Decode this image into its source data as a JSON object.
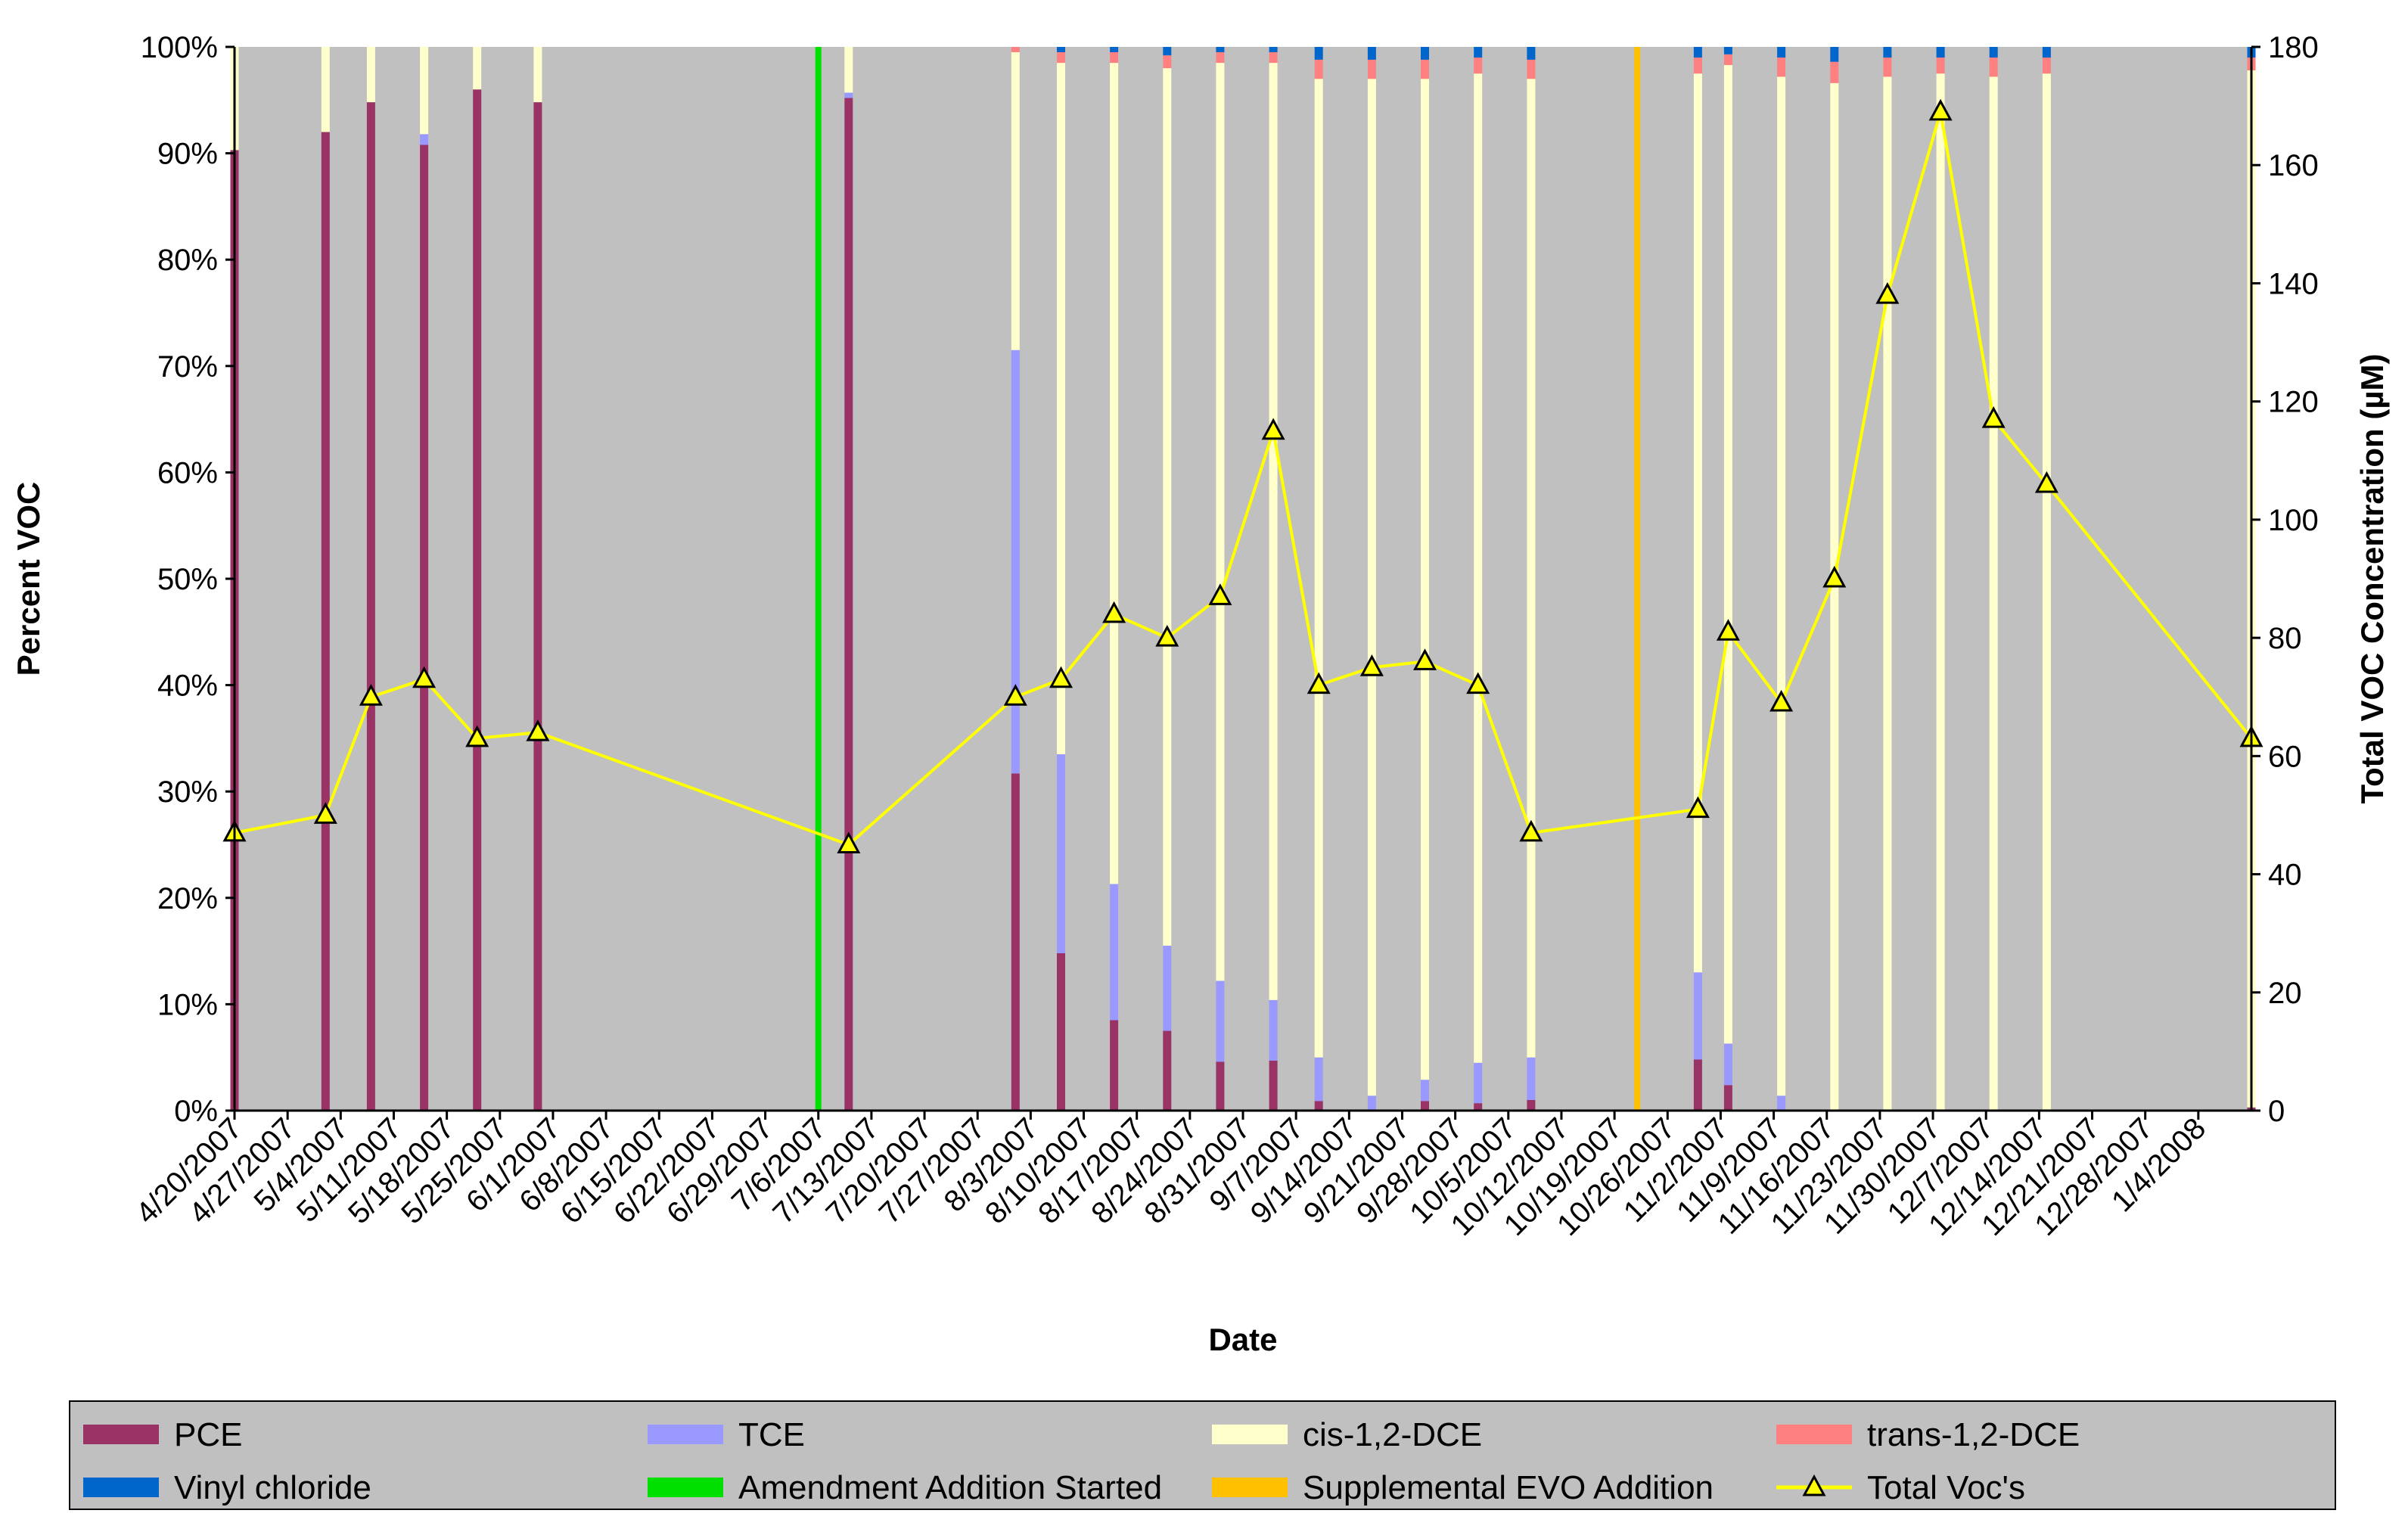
{
  "chart_data": {
    "type": "bar",
    "title": "",
    "xlabel": "Date",
    "ylabel": "Percent VOC",
    "y2label": "Total VOC Concentration (µM)",
    "ylim": [
      0,
      100
    ],
    "y2lim": [
      0,
      180
    ],
    "grid": false,
    "y_ticks": [
      "0%",
      "10%",
      "20%",
      "30%",
      "40%",
      "50%",
      "60%",
      "70%",
      "80%",
      "90%",
      "100%"
    ],
    "y2_ticks": [
      "0",
      "20",
      "40",
      "60",
      "80",
      "100",
      "120",
      "140",
      "160",
      "180"
    ],
    "x_ticks": [
      "4/20/2007",
      "4/27/2007",
      "5/4/2007",
      "5/11/2007",
      "5/18/2007",
      "5/25/2007",
      "6/1/2007",
      "6/8/2007",
      "6/15/2007",
      "6/22/2007",
      "6/29/2007",
      "7/6/2007",
      "7/13/2007",
      "7/20/2007",
      "7/27/2007",
      "8/3/2007",
      "8/10/2007",
      "8/17/2007",
      "8/24/2007",
      "8/31/2007",
      "9/7/2007",
      "9/14/2007",
      "9/21/2007",
      "9/28/2007",
      "10/5/2007",
      "10/12/2007",
      "10/19/2007",
      "10/26/2007",
      "11/2/2007",
      "11/9/2007",
      "11/16/2007",
      "11/23/2007",
      "11/30/2007",
      "12/7/2007",
      "12/14/2007",
      "12/21/2007",
      "12/28/2007",
      "1/4/2008"
    ],
    "x_start_date": "4/20/2007",
    "x_end_date": "1/11/2008",
    "samples": [
      {
        "date": "4/20/2007",
        "pce": 90.3,
        "tce": 0.0,
        "cis": 9.7,
        "trans": 0.0,
        "vc": 0.0,
        "total": 47
      },
      {
        "date": "5/2/2007",
        "pce": 92.0,
        "tce": 0.0,
        "cis": 8.0,
        "trans": 0.0,
        "vc": 0.0,
        "total": 50
      },
      {
        "date": "5/8/2007",
        "pce": 94.8,
        "tce": 0.0,
        "cis": 5.2,
        "trans": 0.0,
        "vc": 0.0,
        "total": 70
      },
      {
        "date": "5/15/2007",
        "pce": 90.8,
        "tce": 1.0,
        "cis": 8.2,
        "trans": 0.0,
        "vc": 0.0,
        "total": 73
      },
      {
        "date": "5/22/2007",
        "pce": 96.0,
        "tce": 0.0,
        "cis": 4.0,
        "trans": 0.0,
        "vc": 0.0,
        "total": 63
      },
      {
        "date": "5/30/2007",
        "pce": 94.8,
        "tce": 0.0,
        "cis": 5.2,
        "trans": 0.0,
        "vc": 0.0,
        "total": 64
      },
      {
        "date": "7/10/2007",
        "pce": 95.2,
        "tce": 0.5,
        "cis": 4.3,
        "trans": 0.0,
        "vc": 0.0,
        "total": 45
      },
      {
        "date": "8/1/2007",
        "pce": 31.7,
        "tce": 39.8,
        "cis": 28.0,
        "trans": 0.5,
        "vc": 0.0,
        "total": 70
      },
      {
        "date": "8/7/2007",
        "pce": 14.8,
        "tce": 18.7,
        "cis": 65.0,
        "trans": 1.0,
        "vc": 0.5,
        "total": 73
      },
      {
        "date": "8/14/2007",
        "pce": 8.5,
        "tce": 12.8,
        "cis": 77.2,
        "trans": 1.0,
        "vc": 0.5,
        "total": 84
      },
      {
        "date": "8/21/2007",
        "pce": 7.5,
        "tce": 8.0,
        "cis": 82.5,
        "trans": 1.2,
        "vc": 0.8,
        "total": 80
      },
      {
        "date": "8/28/2007",
        "pce": 4.6,
        "tce": 7.6,
        "cis": 86.3,
        "trans": 1.0,
        "vc": 0.5,
        "total": 87
      },
      {
        "date": "9/4/2007",
        "pce": 4.7,
        "tce": 5.7,
        "cis": 88.1,
        "trans": 1.0,
        "vc": 0.5,
        "total": 115
      },
      {
        "date": "9/10/2007",
        "pce": 0.9,
        "tce": 4.1,
        "cis": 92.0,
        "trans": 1.8,
        "vc": 1.2,
        "total": 72
      },
      {
        "date": "9/17/2007",
        "pce": 0.0,
        "tce": 1.4,
        "cis": 95.6,
        "trans": 1.8,
        "vc": 1.2,
        "total": 75
      },
      {
        "date": "9/24/2007",
        "pce": 0.9,
        "tce": 2.0,
        "cis": 94.1,
        "trans": 1.8,
        "vc": 1.2,
        "total": 76
      },
      {
        "date": "10/1/2007",
        "pce": 0.7,
        "tce": 3.8,
        "cis": 93.0,
        "trans": 1.5,
        "vc": 1.0,
        "total": 72
      },
      {
        "date": "10/8/2007",
        "pce": 1.0,
        "tce": 4.0,
        "cis": 92.0,
        "trans": 1.8,
        "vc": 1.2,
        "total": 47
      },
      {
        "date": "10/30/2007",
        "pce": 4.8,
        "tce": 8.2,
        "cis": 84.5,
        "trans": 1.5,
        "vc": 1.0,
        "total": 51
      },
      {
        "date": "11/3/2007",
        "pce": 2.4,
        "tce": 3.9,
        "cis": 92.0,
        "trans": 1.0,
        "vc": 0.7,
        "total": 81
      },
      {
        "date": "11/10/2007",
        "pce": 0.0,
        "tce": 1.4,
        "cis": 95.8,
        "trans": 1.8,
        "vc": 1.0,
        "total": 69
      },
      {
        "date": "11/17/2007",
        "pce": 0.0,
        "tce": 0.0,
        "cis": 96.6,
        "trans": 2.0,
        "vc": 1.4,
        "total": 90
      },
      {
        "date": "11/24/2007",
        "pce": 0.0,
        "tce": 0.0,
        "cis": 97.2,
        "trans": 1.8,
        "vc": 1.0,
        "total": 138
      },
      {
        "date": "12/1/2007",
        "pce": 0.0,
        "tce": 0.0,
        "cis": 97.5,
        "trans": 1.5,
        "vc": 1.0,
        "total": 169
      },
      {
        "date": "12/8/2007",
        "pce": 0.0,
        "tce": 0.0,
        "cis": 97.2,
        "trans": 1.8,
        "vc": 1.0,
        "total": 117
      },
      {
        "date": "12/15/2007",
        "pce": 0.0,
        "tce": 0.0,
        "cis": 97.5,
        "trans": 1.5,
        "vc": 1.0,
        "total": 106
      },
      {
        "date": "1/11/2008",
        "pce": 0.3,
        "tce": 0.0,
        "cis": 97.5,
        "trans": 1.2,
        "vc": 1.0,
        "total": 63
      }
    ],
    "events": [
      {
        "name": "Amendment Addition Started",
        "date": "7/6/2007",
        "color": "#00e000"
      },
      {
        "name": "Supplemental EVO Addition",
        "date": "10/22/2007",
        "color": "#ffc000"
      }
    ],
    "legend_position": "bottom",
    "legend": [
      {
        "label": "PCE",
        "kind": "box",
        "color": "#993366"
      },
      {
        "label": "TCE",
        "kind": "box",
        "color": "#9999ff"
      },
      {
        "label": "cis-1,2-DCE",
        "kind": "box",
        "color": "#ffffcc"
      },
      {
        "label": "trans-1,2-DCE",
        "kind": "box",
        "color": "#ff8080"
      },
      {
        "label": "Vinyl chloride",
        "kind": "box",
        "color": "#0066cc"
      },
      {
        "label": "Amendment Addition Started",
        "kind": "box",
        "color": "#00e000"
      },
      {
        "label": "Supplemental EVO Addition",
        "kind": "box",
        "color": "#ffc000"
      },
      {
        "label": "Total Voc's",
        "kind": "line",
        "color": "#ffff00"
      }
    ],
    "colors": {
      "pce": "#993366",
      "tce": "#9999ff",
      "cis": "#ffffcc",
      "trans": "#ff8080",
      "vc": "#0066cc",
      "line": "#ffff00",
      "plot_bg": "#c0c0c0",
      "legend_bg": "#c0c0c0"
    }
  }
}
